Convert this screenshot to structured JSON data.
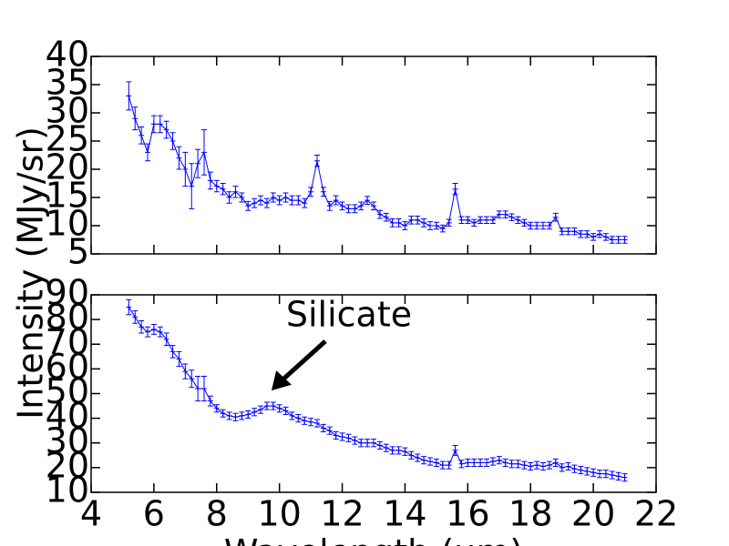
{
  "chart_data": [
    {
      "type": "line",
      "ylabel": "Intensity (MJy/sr)",
      "x": [
        5.2,
        5.4,
        5.6,
        5.8,
        6.0,
        6.2,
        6.4,
        6.6,
        6.8,
        7.0,
        7.2,
        7.4,
        7.6,
        7.8,
        8.0,
        8.2,
        8.4,
        8.6,
        8.8,
        9.0,
        9.2,
        9.4,
        9.6,
        9.8,
        10.0,
        10.2,
        10.4,
        10.6,
        10.8,
        11.0,
        11.2,
        11.4,
        11.6,
        11.8,
        12.0,
        12.2,
        12.4,
        12.6,
        12.8,
        13.0,
        13.2,
        13.4,
        13.6,
        13.8,
        14.0,
        14.2,
        14.4,
        14.6,
        14.8,
        15.0,
        15.2,
        15.4,
        15.6,
        15.8,
        16.0,
        16.2,
        16.4,
        16.6,
        16.8,
        17.0,
        17.2,
        17.4,
        17.6,
        17.8,
        18.0,
        18.2,
        18.4,
        18.6,
        18.8,
        19.0,
        19.2,
        19.4,
        19.6,
        19.8,
        20.0,
        20.2,
        20.4,
        20.6,
        20.8,
        21.0
      ],
      "series": [
        {
          "color": "#0000ff",
          "values": [
            33,
            29,
            26,
            23,
            28,
            28,
            27,
            25,
            22,
            20,
            17,
            21,
            23,
            18,
            17,
            16.5,
            15,
            16,
            15,
            13.5,
            14,
            14.5,
            14,
            15,
            14.5,
            15,
            14.5,
            14.5,
            14,
            16,
            21.5,
            16,
            13.5,
            14.5,
            13.5,
            13,
            13,
            13.5,
            14.5,
            13.5,
            12,
            11.5,
            10.5,
            10.5,
            10,
            11,
            11,
            10.5,
            10,
            10,
            9.5,
            10.5,
            16.5,
            11,
            11,
            10.5,
            11,
            11,
            11,
            12,
            12,
            11.5,
            11,
            10.5,
            10,
            10,
            10,
            10,
            11.5,
            9,
            9,
            9,
            8.5,
            8.5,
            8,
            8.5,
            8,
            7.5,
            7.5,
            7.5
          ],
          "errors": [
            2.5,
            2,
            1.5,
            1.5,
            1.5,
            1.5,
            1.5,
            1.5,
            2,
            3,
            4,
            2.5,
            4,
            1.5,
            1,
            1,
            1,
            1,
            0.8,
            0.8,
            0.8,
            0.8,
            0.8,
            0.8,
            0.8,
            0.8,
            0.8,
            0.8,
            0.8,
            0.8,
            1,
            0.8,
            0.8,
            0.8,
            0.7,
            0.7,
            0.7,
            0.7,
            0.7,
            0.7,
            0.7,
            0.7,
            0.7,
            0.7,
            0.7,
            0.7,
            0.7,
            0.7,
            0.7,
            0.6,
            0.6,
            0.6,
            1,
            0.6,
            0.6,
            0.6,
            0.6,
            0.6,
            0.6,
            0.6,
            0.6,
            0.6,
            0.6,
            0.6,
            0.6,
            0.6,
            0.6,
            0.6,
            0.7,
            0.6,
            0.6,
            0.6,
            0.6,
            0.6,
            0.6,
            0.6,
            0.6,
            0.6,
            0.6,
            0.6
          ]
        }
      ],
      "xlim": [
        4,
        22
      ],
      "xticks": [
        4,
        6,
        8,
        10,
        12,
        14,
        16,
        18,
        20,
        22
      ],
      "ylim": [
        5,
        40
      ],
      "yticks": [
        5,
        10,
        15,
        20,
        25,
        30,
        35,
        40
      ]
    },
    {
      "type": "line",
      "xlabel": "Wavelength (μm)",
      "annotation": "Silicate",
      "x": [
        5.2,
        5.4,
        5.6,
        5.8,
        6.0,
        6.2,
        6.4,
        6.6,
        6.8,
        7.0,
        7.2,
        7.4,
        7.6,
        7.8,
        8.0,
        8.2,
        8.4,
        8.6,
        8.8,
        9.0,
        9.2,
        9.4,
        9.6,
        9.8,
        10.0,
        10.2,
        10.4,
        10.6,
        10.8,
        11.0,
        11.2,
        11.4,
        11.6,
        11.8,
        12.0,
        12.2,
        12.4,
        12.6,
        12.8,
        13.0,
        13.2,
        13.4,
        13.6,
        13.8,
        14.0,
        14.2,
        14.4,
        14.6,
        14.8,
        15.0,
        15.2,
        15.4,
        15.6,
        15.8,
        16.0,
        16.2,
        16.4,
        16.6,
        16.8,
        17.0,
        17.2,
        17.4,
        17.6,
        17.8,
        18.0,
        18.2,
        18.4,
        18.6,
        18.8,
        19.0,
        19.2,
        19.4,
        19.6,
        19.8,
        20.0,
        20.2,
        20.4,
        20.6,
        20.8,
        21.0
      ],
      "series": [
        {
          "color": "#0000ff",
          "values": [
            85,
            81,
            77,
            75,
            76,
            75,
            72,
            67,
            64,
            59,
            56,
            52,
            52,
            47,
            44,
            42,
            41,
            40.5,
            41,
            41.5,
            42.5,
            43.5,
            45,
            45,
            44,
            43,
            41,
            40,
            39,
            38.5,
            38,
            36,
            35,
            33,
            32.5,
            32,
            31,
            30,
            30,
            30,
            29,
            28,
            27,
            27,
            26.5,
            25,
            24,
            23,
            22.5,
            22,
            21,
            21,
            27,
            21.5,
            22,
            22,
            22,
            22,
            22.5,
            23,
            22,
            21.5,
            21.5,
            21,
            20.5,
            21,
            20.5,
            21,
            22,
            20,
            20.5,
            19.5,
            19,
            18.5,
            18,
            17.5,
            17.5,
            17,
            16.5,
            16
          ],
          "errors": [
            3,
            2.5,
            2.5,
            2,
            2,
            2,
            2.5,
            2.5,
            3,
            3,
            3.5,
            5,
            5,
            2,
            1.5,
            1.5,
            1.5,
            1.5,
            1.5,
            1.5,
            1.5,
            1.5,
            1.5,
            1.5,
            1.5,
            1.5,
            1.5,
            1.5,
            1.5,
            1.5,
            1.5,
            1.5,
            1.5,
            1.5,
            1.5,
            1.5,
            1.5,
            1.5,
            1.5,
            1.5,
            1.5,
            1.5,
            1.5,
            1.5,
            1.5,
            1.5,
            1.5,
            1.5,
            1.5,
            1.5,
            1.5,
            1.5,
            2,
            1.5,
            1.5,
            1.5,
            1.5,
            1.5,
            1.5,
            1.5,
            1.5,
            1.5,
            1.5,
            1.5,
            1.5,
            1.5,
            1.5,
            1.5,
            1.5,
            1.5,
            1.5,
            1.5,
            1.5,
            1.5,
            1.5,
            1.5,
            1.5,
            1.5,
            1.5,
            1.5
          ]
        }
      ],
      "xlim": [
        4,
        22
      ],
      "xticks": [
        4,
        6,
        8,
        10,
        12,
        14,
        16,
        18,
        20,
        22
      ],
      "ylim": [
        10,
        90
      ],
      "yticks": [
        10,
        20,
        30,
        40,
        50,
        60,
        70,
        80,
        90
      ]
    }
  ]
}
